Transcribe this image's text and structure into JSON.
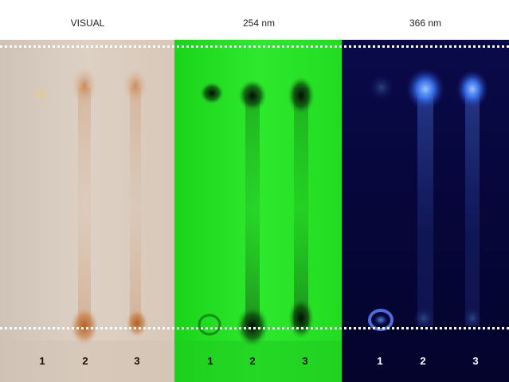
{
  "headers": {
    "visual": "VISUAL",
    "uv254": "254 nm",
    "uv366": "366 nm"
  },
  "panels": {
    "visual": {
      "lanes": [
        "1",
        "2",
        "3"
      ],
      "background": "#d9cbbe",
      "lane_number_color": "#111111",
      "spot_color": "#b8621e"
    },
    "uv254": {
      "lanes": [
        "1",
        "2",
        "3"
      ],
      "background": "#1fe01f",
      "lane_number_color": "#111111",
      "spot_color": "#0a2e0a"
    },
    "uv366": {
      "lanes": [
        "1",
        "2",
        "3"
      ],
      "background": "#06063a",
      "lane_number_color": "#ffffff",
      "spot_color": "#4a8cff"
    }
  },
  "marker_lines": {
    "color": "#ffffff",
    "style": "dotted"
  }
}
